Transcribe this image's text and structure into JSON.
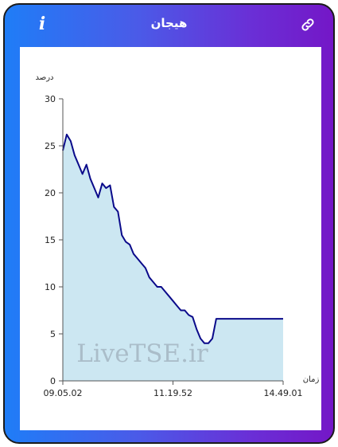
{
  "header": {
    "title": "هیجان",
    "info_icon": "info-icon",
    "link_icon": "link-icon"
  },
  "colors": {
    "gradient_start": "#1f7df7",
    "gradient_end": "#7417c7",
    "line": "#0a0a8a",
    "area": "#cce7f2"
  },
  "watermark": "LiveTSE.ir",
  "chart_data": {
    "type": "area",
    "ylabel": "درصد",
    "xlabel": "زمان",
    "ylim": [
      0,
      30
    ],
    "yticks": [
      0,
      5,
      10,
      15,
      20,
      25,
      30
    ],
    "xticks": [
      "09.05.02",
      "11.19.52",
      "14.49.01"
    ],
    "grid": false,
    "series": [
      {
        "values": [
          24.5,
          26.2,
          25.5,
          24.0,
          23.0,
          22.0,
          23.0,
          21.5,
          20.5,
          19.5,
          21.0,
          20.5,
          20.8,
          18.5,
          18.0,
          15.5,
          14.8,
          14.5,
          13.5,
          13.0,
          12.5,
          12.0,
          11.0,
          10.5,
          10.0,
          10.0,
          9.5,
          9.0,
          8.5,
          8.0,
          7.5,
          7.5,
          7.0,
          6.8,
          5.5,
          4.5,
          4.0,
          4.0,
          4.5,
          6.6,
          6.6,
          6.6,
          6.6,
          6.6,
          6.6,
          6.6,
          6.6,
          6.6,
          6.6,
          6.6,
          6.6,
          6.6,
          6.6,
          6.6,
          6.6,
          6.6,
          6.6
        ]
      }
    ]
  }
}
